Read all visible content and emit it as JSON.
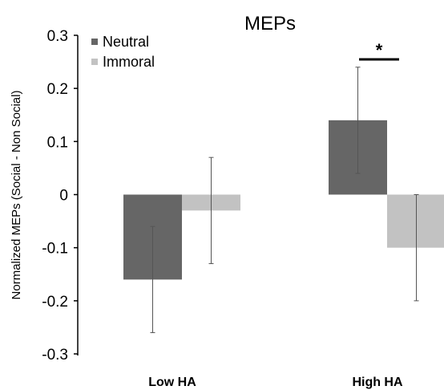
{
  "chart_data": {
    "type": "bar",
    "title": "MEPs",
    "ylabel": "Normalized MEPs (Social - Non Social)",
    "xlabel": "",
    "categories": [
      "Low HA",
      "High HA"
    ],
    "ylim": [
      -0.3,
      0.3
    ],
    "yticks": [
      0.3,
      0.2,
      0.1,
      0,
      -0.1,
      -0.2,
      -0.3
    ],
    "ytick_labels": [
      "0.3",
      "0.2",
      "0.1",
      "0",
      "-0.1",
      "-0.2",
      "-0.3"
    ],
    "legend_position": "top-left",
    "grid": false,
    "series": [
      {
        "name": "Neutral",
        "color": "#666666",
        "values": [
          -0.16,
          0.14
        ],
        "errors": [
          0.1,
          0.1
        ]
      },
      {
        "name": "Immoral",
        "color": "#c2c2c2",
        "values": [
          -0.03,
          -0.1
        ],
        "errors": [
          0.1,
          0.1
        ]
      }
    ],
    "annotations": [
      {
        "text": "*",
        "category": "High HA",
        "y": 0.25
      }
    ]
  }
}
